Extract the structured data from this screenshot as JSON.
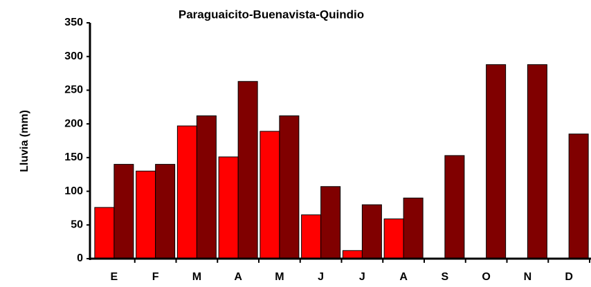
{
  "chart_data": {
    "type": "bar",
    "title": "Paraguaicito-Buenavista-Quindio",
    "y_label": "Lluvia (mm)",
    "categories": [
      "E",
      "F",
      "M",
      "A",
      "M",
      "J",
      "J",
      "A",
      "S",
      "O",
      "N",
      "D"
    ],
    "series": [
      {
        "color": "#ff0000",
        "values": [
          76,
          130,
          197,
          151,
          189,
          65,
          12,
          59,
          null,
          null,
          null,
          null
        ]
      },
      {
        "color": "#800000",
        "values": [
          140,
          140,
          212,
          263,
          212,
          107,
          80,
          90,
          153,
          288,
          288,
          185
        ]
      }
    ],
    "ylim": [
      0,
      350
    ],
    "yticks": [
      0,
      50,
      100,
      150,
      200,
      250,
      300,
      350
    ],
    "grid": false
  }
}
